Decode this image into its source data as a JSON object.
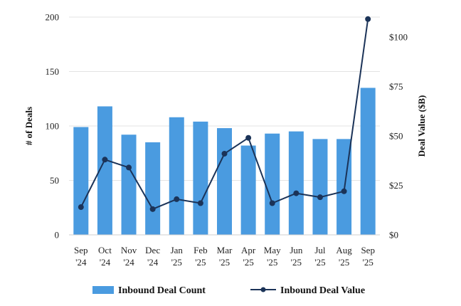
{
  "chart_data": {
    "type": "bar+line",
    "title": "",
    "categories": [
      [
        "Sep",
        "'24"
      ],
      [
        "Oct",
        "'24"
      ],
      [
        "Nov",
        "'24"
      ],
      [
        "Dec",
        "'24"
      ],
      [
        "Jan",
        "'25"
      ],
      [
        "Feb",
        "'25"
      ],
      [
        "Mar",
        "'25"
      ],
      [
        "Apr",
        "'25"
      ],
      [
        "May",
        "'25"
      ],
      [
        "Jun",
        "'25"
      ],
      [
        "Jul",
        "'25"
      ],
      [
        "Aug",
        "'25"
      ],
      [
        "Sep",
        "'25"
      ]
    ],
    "series": [
      {
        "name": "Inbound Deal Count",
        "type": "bar",
        "axis": "left",
        "color": "#4a9be0",
        "values": [
          99,
          118,
          92,
          85,
          108,
          104,
          98,
          82,
          93,
          95,
          88,
          88,
          135
        ]
      },
      {
        "name": "Inbound Deal Value",
        "type": "line",
        "axis": "right",
        "color": "#1b3358",
        "values": [
          14,
          38,
          34,
          13,
          18,
          16,
          41,
          49,
          16,
          21,
          19,
          22,
          109
        ]
      }
    ],
    "y_left": {
      "label": "# of Deals",
      "min": 0,
      "max": 200,
      "ticks": [
        "0",
        "50",
        "100",
        "150",
        "200"
      ]
    },
    "y_right": {
      "label": "Deal Value ($B)",
      "min": 0,
      "max": 110,
      "ticks": [
        "$0",
        "$25",
        "$50",
        "$75",
        "$100"
      ],
      "tick_values": [
        0,
        25,
        50,
        75,
        100
      ]
    },
    "grid": true,
    "legend_position": "bottom"
  }
}
